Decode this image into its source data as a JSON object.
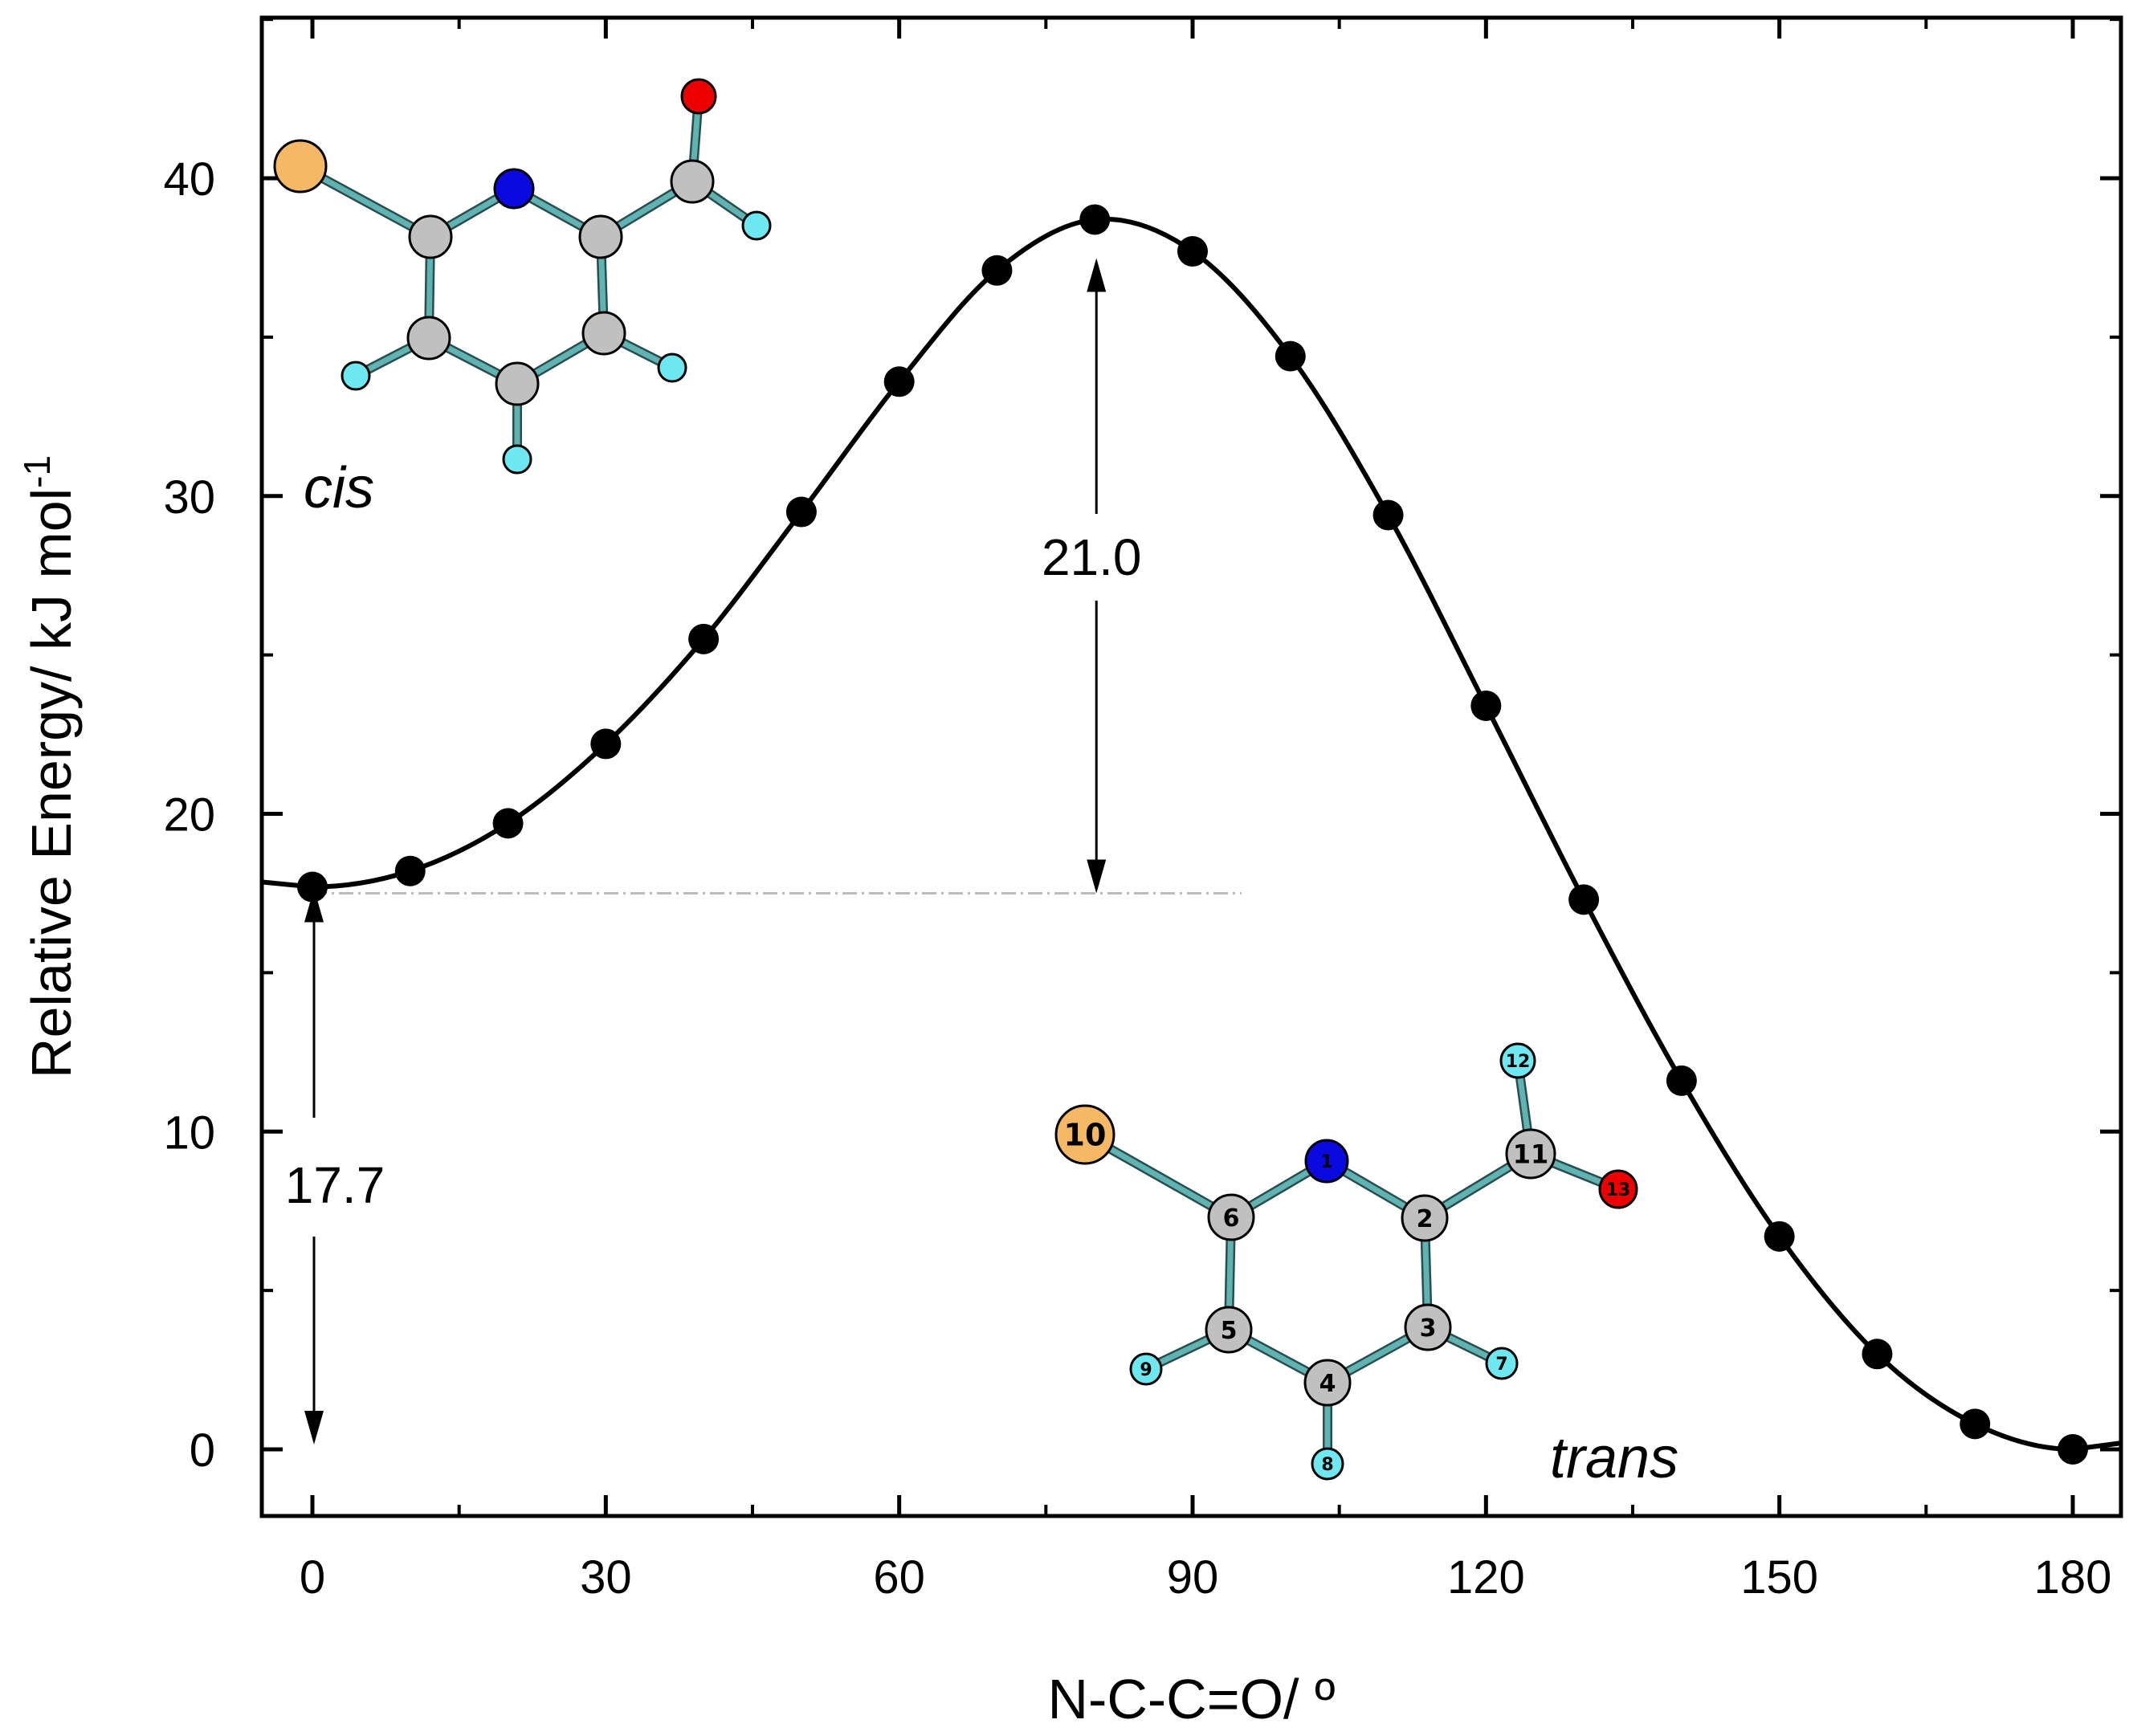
{
  "chart_data": {
    "type": "line",
    "xlabel": "N-C-C=O/ º",
    "ylabel_main": "Relative Energy/ kJ mol",
    "ylabel_sup": "-1",
    "xlim": [
      -5,
      185
    ],
    "ylim": [
      -2,
      45
    ],
    "x_ticks": [
      0,
      30,
      60,
      90,
      120,
      150,
      180
    ],
    "x_tick_labels": [
      "0",
      "30",
      "60",
      "90",
      "120",
      "150",
      "180"
    ],
    "y_ticks": [
      0,
      10,
      20,
      30,
      40
    ],
    "y_tick_labels": [
      "0",
      "10",
      "20",
      "30",
      "40"
    ],
    "grid": false,
    "series": [
      {
        "style": "markers+smooth-line",
        "color": "#000000",
        "points": [
          {
            "x": 0,
            "y": 17.7
          },
          {
            "x": 10,
            "y": 18.2
          },
          {
            "x": 20,
            "y": 19.7
          },
          {
            "x": 30,
            "y": 22.2
          },
          {
            "x": 40,
            "y": 25.5
          },
          {
            "x": 50,
            "y": 29.5
          },
          {
            "x": 60,
            "y": 33.6
          },
          {
            "x": 70,
            "y": 37.1
          },
          {
            "x": 80,
            "y": 38.7
          },
          {
            "x": 90,
            "y": 37.7
          },
          {
            "x": 100,
            "y": 34.4
          },
          {
            "x": 110,
            "y": 29.4
          },
          {
            "x": 120,
            "y": 23.4
          },
          {
            "x": 130,
            "y": 17.3
          },
          {
            "x": 140,
            "y": 11.6
          },
          {
            "x": 150,
            "y": 6.7
          },
          {
            "x": 160,
            "y": 3.0
          },
          {
            "x": 170,
            "y": 0.8
          },
          {
            "x": 180,
            "y": 0.0
          }
        ]
      }
    ],
    "reference_line": {
      "y": 17.5,
      "x_from": 0,
      "x_to": 95,
      "style": "dash-dot",
      "color": "#bbbbbb"
    },
    "annotations": [
      {
        "text": "21.0",
        "x": 80,
        "y_from": 17.5,
        "y_to": 38.7
      },
      {
        "text": "17.7",
        "x": 0,
        "y_from": 0,
        "y_to": 17.7
      }
    ]
  },
  "molecules": {
    "cis_label": "cis",
    "trans_label": "trans",
    "trans_atom_numbers": [
      "1",
      "2",
      "3",
      "4",
      "5",
      "6",
      "7",
      "8",
      "9",
      "10",
      "11",
      "12",
      "13"
    ],
    "colors": {
      "bond": "#5fb3b3",
      "carbon": "#c0c0c0",
      "nitrogen": "#0a0ae0",
      "oxygen": "#ee0000",
      "hydrogen": "#6ee8f0",
      "halogen": "#f5b865"
    }
  }
}
